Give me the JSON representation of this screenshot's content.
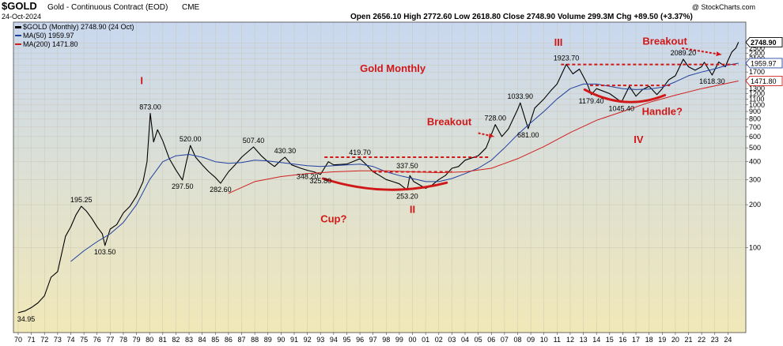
{
  "header": {
    "symbol": "$GOLD",
    "name": "Gold - Continuous Contract (EOD)",
    "exchange": "CME",
    "date": "24-Oct-2024",
    "ohlc": "Open 2656.10  High 2772.60  Low 2618.80  Close 2748.90  Volume 299.3M  Chg +89.50 (+3.37%)",
    "watermark": "@ StockCharts.com",
    "legend_main": "$GOLD (Monthly) 2748.90 (24 Oct)",
    "legend_ma50": "MA(50) 1959.97",
    "legend_ma200": "MA(200) 1471.80"
  },
  "chart_data": {
    "type": "line",
    "title": "Gold - Continuous Contract (EOD)",
    "yscale": "log",
    "ylim": [
      30,
      3100
    ],
    "xlim": [
      1970,
      2025
    ],
    "colors": {
      "price": "#000000",
      "ma50": "#2040a0",
      "ma200": "#d02020",
      "annotation": "#d01818",
      "bg_top": "#c9d8ef",
      "bg_bottom": "#f1e8b8"
    },
    "x_ticks": [
      "70",
      "71",
      "72",
      "73",
      "74",
      "75",
      "76",
      "77",
      "78",
      "79",
      "80",
      "81",
      "82",
      "83",
      "84",
      "85",
      "86",
      "87",
      "88",
      "89",
      "90",
      "91",
      "92",
      "93",
      "94",
      "95",
      "96",
      "97",
      "98",
      "99",
      "00",
      "01",
      "02",
      "03",
      "04",
      "05",
      "06",
      "07",
      "08",
      "09",
      "10",
      "11",
      "12",
      "13",
      "14",
      "15",
      "16",
      "17",
      "18",
      "19",
      "20",
      "21",
      "22",
      "23",
      "24"
    ],
    "y_ticks": [
      100,
      200,
      300,
      400,
      500,
      600,
      700,
      800,
      900,
      1000,
      1100,
      1200,
      1300,
      1500,
      1700,
      1900,
      2100,
      2300,
      2500,
      2700
    ],
    "y_tick_labels": [
      "100",
      "200",
      "300",
      "400",
      "500",
      "600",
      "700",
      "800",
      "900",
      "1000",
      "1100",
      "1200",
      "1300",
      "1500",
      "1700",
      "1900",
      "2100",
      "2300",
      "2500",
      "2700"
    ],
    "price_tags": [
      {
        "value": 2748.9,
        "label": "2748.90",
        "style": "dark"
      },
      {
        "value": 1959.97,
        "label": "1959.97",
        "style": "blue"
      },
      {
        "value": 1471.8,
        "label": "1471.80",
        "style": "red"
      }
    ],
    "series": [
      {
        "name": "$GOLD (Monthly)",
        "key": "price",
        "points": [
          [
            1970.0,
            35
          ],
          [
            1970.5,
            36
          ],
          [
            1971.0,
            38
          ],
          [
            1971.5,
            41
          ],
          [
            1972.0,
            46
          ],
          [
            1972.5,
            62
          ],
          [
            1973.0,
            68
          ],
          [
            1973.3,
            90
          ],
          [
            1973.6,
            120
          ],
          [
            1974.0,
            140
          ],
          [
            1974.4,
            170
          ],
          [
            1974.8,
            195
          ],
          [
            1975.2,
            180
          ],
          [
            1975.6,
            160
          ],
          [
            1976.0,
            140
          ],
          [
            1976.4,
            125
          ],
          [
            1976.6,
            103.5
          ],
          [
            1977.0,
            135
          ],
          [
            1977.5,
            145
          ],
          [
            1978.0,
            175
          ],
          [
            1978.5,
            195
          ],
          [
            1979.0,
            230
          ],
          [
            1979.5,
            290
          ],
          [
            1979.8,
            400
          ],
          [
            1980.05,
            873
          ],
          [
            1980.3,
            550
          ],
          [
            1980.6,
            670
          ],
          [
            1981.0,
            560
          ],
          [
            1981.5,
            420
          ],
          [
            1982.0,
            350
          ],
          [
            1982.5,
            297.5
          ],
          [
            1982.8,
            400
          ],
          [
            1983.1,
            520
          ],
          [
            1983.5,
            430
          ],
          [
            1984.0,
            380
          ],
          [
            1984.5,
            340
          ],
          [
            1985.0,
            310
          ],
          [
            1985.4,
            282.6
          ],
          [
            1986.0,
            340
          ],
          [
            1986.5,
            380
          ],
          [
            1987.0,
            430
          ],
          [
            1987.9,
            507.4
          ],
          [
            1988.5,
            440
          ],
          [
            1989.0,
            400
          ],
          [
            1989.5,
            370
          ],
          [
            1990.0,
            410
          ],
          [
            1990.3,
            430.3
          ],
          [
            1990.8,
            380
          ],
          [
            1991.5,
            360
          ],
          [
            1992.0,
            348.2
          ],
          [
            1992.5,
            340
          ],
          [
            1993.0,
            325.8
          ],
          [
            1993.6,
            400
          ],
          [
            1994.0,
            380
          ],
          [
            1995.0,
            385
          ],
          [
            1996.0,
            419.7
          ],
          [
            1996.5,
            380
          ],
          [
            1997.0,
            340
          ],
          [
            1997.5,
            320
          ],
          [
            1998.0,
            300
          ],
          [
            1998.5,
            290
          ],
          [
            1999.0,
            280
          ],
          [
            1999.6,
            253.2
          ],
          [
            1999.8,
            320
          ],
          [
            2000.1,
            290
          ],
          [
            2001.0,
            260
          ],
          [
            2001.5,
            275
          ],
          [
            2002.0,
            300
          ],
          [
            2002.5,
            320
          ],
          [
            2003.0,
            360
          ],
          [
            2003.5,
            370
          ],
          [
            2004.0,
            410
          ],
          [
            2005.0,
            440
          ],
          [
            2005.6,
            500
          ],
          [
            2006.3,
            728
          ],
          [
            2006.8,
            600
          ],
          [
            2007.3,
            680
          ],
          [
            2008.0,
            930
          ],
          [
            2008.2,
            1033.9
          ],
          [
            2008.8,
            681
          ],
          [
            2009.3,
            950
          ],
          [
            2010.0,
            1100
          ],
          [
            2010.5,
            1250
          ],
          [
            2011.0,
            1400
          ],
          [
            2011.7,
            1923.7
          ],
          [
            2012.2,
            1650
          ],
          [
            2012.7,
            1780
          ],
          [
            2013.3,
            1400
          ],
          [
            2013.6,
            1179.4
          ],
          [
            2014.0,
            1300
          ],
          [
            2014.5,
            1250
          ],
          [
            2015.0,
            1200
          ],
          [
            2015.9,
            1045.4
          ],
          [
            2016.5,
            1350
          ],
          [
            2017.0,
            1150
          ],
          [
            2017.5,
            1280
          ],
          [
            2018.0,
            1350
          ],
          [
            2018.6,
            1180
          ],
          [
            2019.0,
            1300
          ],
          [
            2019.5,
            1500
          ],
          [
            2020.0,
            1600
          ],
          [
            2020.6,
            2089.2
          ],
          [
            2021.0,
            1850
          ],
          [
            2021.5,
            1750
          ],
          [
            2022.0,
            1850
          ],
          [
            2022.2,
            1990
          ],
          [
            2022.8,
            1618.3
          ],
          [
            2023.3,
            2000
          ],
          [
            2023.8,
            1850
          ],
          [
            2024.0,
            2050
          ],
          [
            2024.3,
            2350
          ],
          [
            2024.6,
            2500
          ],
          [
            2024.8,
            2748.9
          ]
        ]
      },
      {
        "name": "MA(50)",
        "key": "ma50",
        "points": [
          [
            1974.0,
            80
          ],
          [
            1975.0,
            95
          ],
          [
            1976.0,
            110
          ],
          [
            1977.0,
            125
          ],
          [
            1978.0,
            150
          ],
          [
            1979.0,
            200
          ],
          [
            1980.0,
            300
          ],
          [
            1981.0,
            400
          ],
          [
            1982.0,
            440
          ],
          [
            1983.0,
            450
          ],
          [
            1984.0,
            430
          ],
          [
            1985.0,
            400
          ],
          [
            1986.0,
            390
          ],
          [
            1987.0,
            395
          ],
          [
            1988.0,
            410
          ],
          [
            1989.0,
            405
          ],
          [
            1990.0,
            395
          ],
          [
            1991.0,
            385
          ],
          [
            1992.0,
            375
          ],
          [
            1993.0,
            370
          ],
          [
            1994.0,
            375
          ],
          [
            1995.0,
            380
          ],
          [
            1996.0,
            385
          ],
          [
            1997.0,
            370
          ],
          [
            1998.0,
            340
          ],
          [
            1999.0,
            320
          ],
          [
            2000.0,
            305
          ],
          [
            2001.0,
            290
          ],
          [
            2002.0,
            290
          ],
          [
            2003.0,
            305
          ],
          [
            2004.0,
            330
          ],
          [
            2005.0,
            360
          ],
          [
            2006.0,
            410
          ],
          [
            2007.0,
            500
          ],
          [
            2008.0,
            620
          ],
          [
            2009.0,
            750
          ],
          [
            2010.0,
            900
          ],
          [
            2011.0,
            1100
          ],
          [
            2012.0,
            1300
          ],
          [
            2013.0,
            1400
          ],
          [
            2014.0,
            1400
          ],
          [
            2015.0,
            1350
          ],
          [
            2016.0,
            1300
          ],
          [
            2017.0,
            1280
          ],
          [
            2018.0,
            1290
          ],
          [
            2019.0,
            1330
          ],
          [
            2020.0,
            1450
          ],
          [
            2021.0,
            1600
          ],
          [
            2022.0,
            1700
          ],
          [
            2023.0,
            1790
          ],
          [
            2024.0,
            1900
          ],
          [
            2024.8,
            1959.97
          ]
        ]
      },
      {
        "name": "MA(200)",
        "key": "ma200",
        "points": [
          [
            1986.0,
            240
          ],
          [
            1988.0,
            290
          ],
          [
            1990.0,
            315
          ],
          [
            1992.0,
            330
          ],
          [
            1994.0,
            340
          ],
          [
            1996.0,
            345
          ],
          [
            1998.0,
            345
          ],
          [
            2000.0,
            340
          ],
          [
            2002.0,
            335
          ],
          [
            2004.0,
            340
          ],
          [
            2006.0,
            360
          ],
          [
            2008.0,
            420
          ],
          [
            2010.0,
            510
          ],
          [
            2012.0,
            640
          ],
          [
            2014.0,
            780
          ],
          [
            2016.0,
            900
          ],
          [
            2018.0,
            1040
          ],
          [
            2020.0,
            1170
          ],
          [
            2022.0,
            1300
          ],
          [
            2024.0,
            1420
          ],
          [
            2024.8,
            1471.8
          ]
        ]
      }
    ],
    "value_labels": [
      {
        "x": 1970.0,
        "y": 34.95,
        "text": "34.95",
        "pos": "below"
      },
      {
        "x": 1974.8,
        "y": 195.25,
        "text": "195.25",
        "pos": "above"
      },
      {
        "x": 1976.6,
        "y": 103.5,
        "text": "103.50",
        "pos": "below"
      },
      {
        "x": 1980.05,
        "y": 873,
        "text": "873.00",
        "pos": "above"
      },
      {
        "x": 1982.5,
        "y": 297.5,
        "text": "297.50",
        "pos": "below"
      },
      {
        "x": 1983.1,
        "y": 520,
        "text": "520.00",
        "pos": "above"
      },
      {
        "x": 1985.4,
        "y": 282.6,
        "text": "282.60",
        "pos": "below"
      },
      {
        "x": 1987.9,
        "y": 507.4,
        "text": "507.40",
        "pos": "above"
      },
      {
        "x": 1990.3,
        "y": 430.3,
        "text": "430.30",
        "pos": "above"
      },
      {
        "x": 1992.0,
        "y": 348.2,
        "text": "348.20",
        "pos": "below"
      },
      {
        "x": 1993.0,
        "y": 325.8,
        "text": "325.80",
        "pos": "below"
      },
      {
        "x": 1996.0,
        "y": 419.7,
        "text": "419.70",
        "pos": "above"
      },
      {
        "x": 1999.6,
        "y": 337.5,
        "text": "337.50",
        "pos": "above"
      },
      {
        "x": 1999.6,
        "y": 253.2,
        "text": "253.20",
        "pos": "below"
      },
      {
        "x": 2006.3,
        "y": 728,
        "text": "728.00",
        "pos": "above"
      },
      {
        "x": 2008.2,
        "y": 1033.9,
        "text": "1033.90",
        "pos": "above"
      },
      {
        "x": 2008.8,
        "y": 681,
        "text": "681.00",
        "pos": "below"
      },
      {
        "x": 2011.7,
        "y": 1923.7,
        "text": "1923.70",
        "pos": "above"
      },
      {
        "x": 2013.6,
        "y": 1179.4,
        "text": "1179.40",
        "pos": "below"
      },
      {
        "x": 2015.9,
        "y": 1045.4,
        "text": "1045.40",
        "pos": "below"
      },
      {
        "x": 2020.6,
        "y": 2089.2,
        "text": "2089.20",
        "pos": "above"
      },
      {
        "x": 2022.8,
        "y": 1618.3,
        "text": "1618.30",
        "pos": "below"
      }
    ],
    "annotations": [
      {
        "text": "Gold Monthly",
        "x": 1998.5,
        "y": 1700,
        "size": 13
      },
      {
        "text": "Cup?",
        "x": 1994.0,
        "y": 150,
        "size": 13
      },
      {
        "text": "Handle?",
        "x": 2019.0,
        "y": 850,
        "size": 13
      },
      {
        "text": "Breakout",
        "x": 2002.8,
        "y": 720,
        "size": 13
      },
      {
        "text": "Breakout",
        "x": 2019.2,
        "y": 2650,
        "size": 13
      },
      {
        "text": "I",
        "x": 1979.4,
        "y": 1400,
        "size": 13
      },
      {
        "text": "II",
        "x": 2000.0,
        "y": 175,
        "size": 13
      },
      {
        "text": "III",
        "x": 2011.1,
        "y": 2600,
        "size": 13
      },
      {
        "text": "IV",
        "x": 2017.2,
        "y": 540,
        "size": 13
      }
    ],
    "dashed_levels": [
      {
        "y": 430,
        "x1": 1993.3,
        "x2": 2005.9
      },
      {
        "y": 340,
        "x1": 1997.0,
        "x2": 2003.0
      },
      {
        "y": 1920,
        "x1": 2011.3,
        "x2": 2024.8
      },
      {
        "y": 1370,
        "x1": 2013.5,
        "x2": 2019.6
      }
    ],
    "arcs": [
      {
        "x1": 1993.2,
        "x2": 2002.6,
        "y_left": 305,
        "y_bottom": 255,
        "y_right": 285
      },
      {
        "x1": 2013.1,
        "x2": 2019.2,
        "y_left": 1280,
        "y_bottom": 1050,
        "y_right": 1170
      }
    ],
    "arrows": [
      {
        "x1": 2005.0,
        "y1": 635,
        "x2": 2006.2,
        "y2": 600
      },
      {
        "x1": 2020.5,
        "y1": 2500,
        "x2": 2023.5,
        "y2": 2250
      }
    ]
  }
}
